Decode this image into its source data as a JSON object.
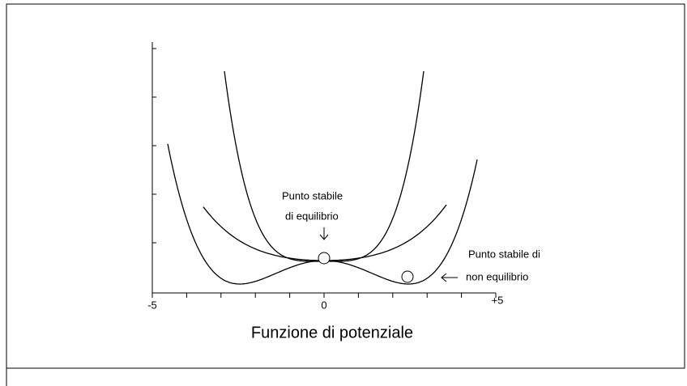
{
  "axis": {
    "x_labels": [
      "-5",
      "0",
      "+5"
    ]
  },
  "title": "Funzione di potenziale",
  "annotations": [
    {
      "lines": [
        "Punto stabile",
        "di equilibrio"
      ]
    },
    {
      "lines": [
        "Punto stabile di",
        "non equilibrio"
      ]
    }
  ]
}
